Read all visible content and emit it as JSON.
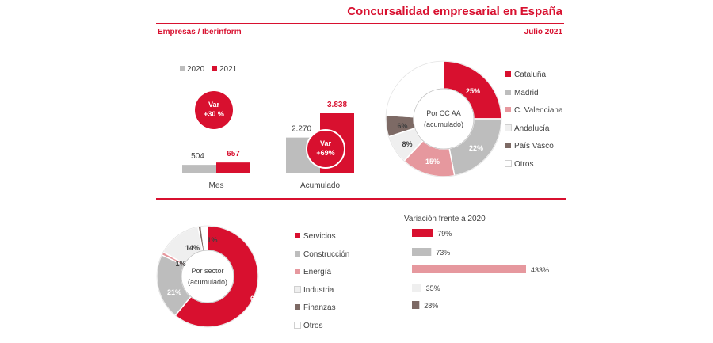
{
  "header": {
    "title": "Concursalidad empresarial en España",
    "subtitle": "Empresas / Iberinform",
    "date": "Julio 2021"
  },
  "colors": {
    "red": "#d8102f",
    "grey": "#bdbdbd",
    "pink": "#e6989e",
    "light": "#efefef",
    "brown": "#7d6a65",
    "white": "#ffffff"
  },
  "chart_data": [
    {
      "type": "bar",
      "categories": [
        "Mes",
        "Acumulado"
      ],
      "series": [
        {
          "name": "2020",
          "values": [
            504,
            2270
          ],
          "labels": [
            "504",
            "2.270"
          ]
        },
        {
          "name": "2021",
          "values": [
            657,
            3838
          ],
          "labels": [
            "657",
            "3.838"
          ]
        }
      ],
      "ylim": [
        0,
        4000
      ],
      "legend": "top-left",
      "annotations": [
        {
          "text": [
            "Var",
            "+30 %"
          ]
        },
        {
          "text": [
            "Var",
            "+69%"
          ]
        }
      ]
    },
    {
      "type": "pie",
      "center_label": [
        "Por CC AA",
        "(acumulado)"
      ],
      "slices": [
        {
          "name": "Cataluña",
          "value": 25,
          "label": "25%"
        },
        {
          "name": "Madrid",
          "value": 22,
          "label": "22%"
        },
        {
          "name": "C. Valenciana",
          "value": 15,
          "label": "15%"
        },
        {
          "name": "Andalucía",
          "value": 8,
          "label": "8%"
        },
        {
          "name": "País Vasco",
          "value": 6,
          "label": "6%"
        },
        {
          "name": "Otros",
          "value": 24,
          "label": ""
        }
      ],
      "legend": "right"
    },
    {
      "type": "pie",
      "center_label": [
        "Por sector",
        "(acumulado)"
      ],
      "slices": [
        {
          "name": "Servicios",
          "value": 61,
          "label": "61%"
        },
        {
          "name": "Construcción",
          "value": 21,
          "label": "21%"
        },
        {
          "name": "Energía",
          "value": 1,
          "label": "1%"
        },
        {
          "name": "Industria",
          "value": 14,
          "label": "14%"
        },
        {
          "name": "Finanzas",
          "value": 1,
          "label": "1%"
        },
        {
          "name": "Otros",
          "value": 2,
          "label": ""
        }
      ],
      "legend": "right"
    },
    {
      "type": "bar",
      "orientation": "horizontal",
      "title": "Variación frente a 2020",
      "categories": [
        "Servicios",
        "Construcción",
        "Energía",
        "Industria",
        "Finanzas"
      ],
      "values": [
        79,
        73,
        433,
        35,
        28
      ],
      "labels": [
        "79%",
        "73%",
        "433%",
        "35%",
        "28%"
      ],
      "xlim": [
        0,
        433
      ]
    }
  ]
}
